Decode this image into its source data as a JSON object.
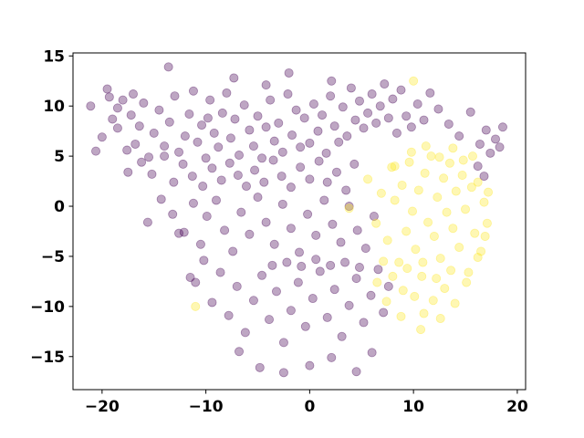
{
  "chart_data": {
    "type": "scatter",
    "title": "",
    "xlabel": "",
    "ylabel": "",
    "xlim": [
      -22.8,
      20.8
    ],
    "ylim": [
      -18.3,
      15.3
    ],
    "x_ticks": [
      -20,
      -10,
      0,
      10,
      20
    ],
    "y_ticks": [
      -15,
      -10,
      -5,
      0,
      5,
      10,
      15
    ],
    "x_tick_labels": [
      "−20",
      "−10",
      "0",
      "10",
      "20"
    ],
    "y_tick_labels": [
      "−15",
      "−10",
      "−5",
      "0",
      "5",
      "10",
      "15"
    ],
    "grid": false,
    "legend": "none",
    "marker_alpha": 0.35,
    "series": [
      {
        "color": "#440154",
        "points": [
          [
            -21.1,
            10.0
          ],
          [
            -20.6,
            5.5
          ],
          [
            -20.0,
            6.9
          ],
          [
            -19.5,
            11.7
          ],
          [
            -19.3,
            10.9
          ],
          [
            -19.0,
            8.7
          ],
          [
            -18.5,
            7.8
          ],
          [
            -18.0,
            10.6
          ],
          [
            -17.6,
            5.6
          ],
          [
            -17.2,
            9.1
          ],
          [
            -16.8,
            6.2
          ],
          [
            -16.4,
            8.0
          ],
          [
            -16.0,
            10.3
          ],
          [
            -15.5,
            4.9
          ],
          [
            -15.0,
            7.3
          ],
          [
            -14.5,
            9.6
          ],
          [
            -14.0,
            6.0
          ],
          [
            -13.5,
            8.4
          ],
          [
            -13.0,
            11.0
          ],
          [
            -12.6,
            5.4
          ],
          [
            -12.0,
            7.0
          ],
          [
            -11.6,
            9.2
          ],
          [
            -11.2,
            11.5
          ],
          [
            -10.8,
            6.4
          ],
          [
            -10.4,
            8.1
          ],
          [
            -10.0,
            4.8
          ],
          [
            -9.6,
            10.6
          ],
          [
            -9.2,
            7.3
          ],
          [
            -8.8,
            5.9
          ],
          [
            -8.4,
            9.3
          ],
          [
            -8.0,
            11.3
          ],
          [
            -7.6,
            6.8
          ],
          [
            -7.2,
            8.7
          ],
          [
            -6.8,
            5.1
          ],
          [
            -6.3,
            10.1
          ],
          [
            -5.8,
            7.6
          ],
          [
            -5.4,
            6.0
          ],
          [
            -5.0,
            9.0
          ],
          [
            -4.6,
            4.8
          ],
          [
            -4.2,
            7.9
          ],
          [
            -3.8,
            10.6
          ],
          [
            -3.4,
            6.5
          ],
          [
            -3.0,
            8.3
          ],
          [
            -2.6,
            5.4
          ],
          [
            -2.1,
            11.2
          ],
          [
            -1.7,
            7.1
          ],
          [
            -1.3,
            9.6
          ],
          [
            -0.9,
            5.9
          ],
          [
            -0.5,
            8.8
          ],
          [
            0.0,
            6.3
          ],
          [
            0.4,
            10.2
          ],
          [
            0.8,
            7.5
          ],
          [
            1.2,
            9.1
          ],
          [
            1.6,
            5.3
          ],
          [
            2.0,
            11.0
          ],
          [
            2.4,
            8.0
          ],
          [
            2.8,
            6.4
          ],
          [
            3.2,
            9.9
          ],
          [
            3.6,
            7.0
          ],
          [
            4.0,
            11.8
          ],
          [
            4.4,
            8.6
          ],
          [
            4.8,
            10.5
          ],
          [
            5.2,
            7.8
          ],
          [
            5.6,
            9.3
          ],
          [
            6.0,
            11.2
          ],
          [
            6.4,
            8.3
          ],
          [
            6.8,
            10.0
          ],
          [
            7.2,
            12.2
          ],
          [
            7.6,
            8.8
          ],
          [
            8.0,
            10.7
          ],
          [
            8.4,
            7.3
          ],
          [
            8.8,
            11.6
          ],
          [
            9.3,
            9.0
          ],
          [
            9.8,
            7.9
          ],
          [
            10.4,
            10.2
          ],
          [
            11.0,
            8.6
          ],
          [
            11.6,
            11.3
          ],
          [
            12.4,
            9.7
          ],
          [
            13.4,
            8.2
          ],
          [
            14.4,
            7.0
          ],
          [
            15.5,
            9.4
          ],
          [
            16.4,
            6.2
          ],
          [
            17.0,
            7.6
          ],
          [
            17.4,
            5.3
          ],
          [
            17.9,
            6.7
          ],
          [
            18.3,
            5.9
          ],
          [
            18.6,
            7.9
          ],
          [
            16.2,
            4.0
          ],
          [
            16.8,
            3.0
          ],
          [
            -17.5,
            3.4
          ],
          [
            -16.2,
            4.4
          ],
          [
            -15.2,
            3.2
          ],
          [
            -14.0,
            5.0
          ],
          [
            -13.1,
            2.4
          ],
          [
            -12.2,
            4.2
          ],
          [
            -11.3,
            3.0
          ],
          [
            -10.3,
            2.0
          ],
          [
            -9.4,
            3.8
          ],
          [
            -8.5,
            2.6
          ],
          [
            -7.7,
            4.3
          ],
          [
            -6.9,
            3.1
          ],
          [
            -6.1,
            2.0
          ],
          [
            -5.3,
            3.6
          ],
          [
            -4.4,
            2.4
          ],
          [
            -3.5,
            4.6
          ],
          [
            -2.7,
            3.0
          ],
          [
            -1.8,
            1.9
          ],
          [
            -0.9,
            3.9
          ],
          [
            0.0,
            2.7
          ],
          [
            0.9,
            4.5
          ],
          [
            1.7,
            2.4
          ],
          [
            2.6,
            3.4
          ],
          [
            3.5,
            1.6
          ],
          [
            4.3,
            4.2
          ],
          [
            -15.6,
            -1.6
          ],
          [
            -14.3,
            0.7
          ],
          [
            -13.2,
            -0.8
          ],
          [
            -12.1,
            -2.6
          ],
          [
            -11.2,
            0.3
          ],
          [
            -10.5,
            -3.8
          ],
          [
            -9.9,
            -1.0
          ],
          [
            -9.0,
            0.6
          ],
          [
            -8.2,
            -2.4
          ],
          [
            -7.4,
            -4.5
          ],
          [
            -6.6,
            -0.6
          ],
          [
            -5.8,
            -2.8
          ],
          [
            -5.0,
            0.9
          ],
          [
            -4.2,
            -1.6
          ],
          [
            -3.4,
            -3.8
          ],
          [
            -2.6,
            0.2
          ],
          [
            -1.8,
            -2.2
          ],
          [
            -1.0,
            -4.6
          ],
          [
            -0.2,
            -0.8
          ],
          [
            0.6,
            -2.9
          ],
          [
            1.4,
            0.6
          ],
          [
            2.2,
            -1.8
          ],
          [
            3.0,
            -3.6
          ],
          [
            3.8,
            0.0
          ],
          [
            4.6,
            -2.4
          ],
          [
            5.4,
            -4.2
          ],
          [
            6.2,
            -1.0
          ],
          [
            -12.6,
            -2.7
          ],
          [
            -11.5,
            -7.1
          ],
          [
            -11.0,
            -7.6
          ],
          [
            -10.2,
            -5.4
          ],
          [
            -9.4,
            -9.6
          ],
          [
            -8.6,
            -6.6
          ],
          [
            -7.8,
            -10.9
          ],
          [
            -7.0,
            -8.0
          ],
          [
            -6.2,
            -12.6
          ],
          [
            -5.4,
            -9.4
          ],
          [
            -4.6,
            -6.9
          ],
          [
            -3.9,
            -11.3
          ],
          [
            -3.2,
            -8.5
          ],
          [
            -2.5,
            -13.6
          ],
          [
            -1.8,
            -10.4
          ],
          [
            -1.1,
            -7.6
          ],
          [
            -0.4,
            -12.0
          ],
          [
            0.3,
            -9.2
          ],
          [
            1.0,
            -6.5
          ],
          [
            1.7,
            -11.1
          ],
          [
            2.4,
            -8.3
          ],
          [
            3.1,
            -13.0
          ],
          [
            3.8,
            -9.9
          ],
          [
            4.5,
            -7.2
          ],
          [
            5.2,
            -11.6
          ],
          [
            5.9,
            -8.9
          ],
          [
            6.6,
            -6.3
          ],
          [
            7.1,
            -10.6
          ],
          [
            7.6,
            -8.0
          ],
          [
            -6.8,
            -14.5
          ],
          [
            -4.8,
            -16.1
          ],
          [
            -2.5,
            -16.6
          ],
          [
            0.0,
            -15.9
          ],
          [
            2.1,
            -15.1
          ],
          [
            4.5,
            -16.5
          ],
          [
            6.0,
            -14.6
          ],
          [
            -2.0,
            13.3
          ],
          [
            -13.6,
            13.9
          ],
          [
            -3.6,
            -5.9
          ],
          [
            -2.2,
            -5.6
          ],
          [
            -0.8,
            -6.0
          ],
          [
            0.6,
            -5.3
          ],
          [
            2.0,
            -5.9
          ],
          [
            3.4,
            -5.6
          ],
          [
            4.8,
            -6.1
          ],
          [
            -9.8,
            8.8
          ],
          [
            -4.2,
            12.1
          ],
          [
            -7.3,
            12.8
          ],
          [
            2.1,
            12.5
          ],
          [
            -18.5,
            9.8
          ],
          [
            -17.0,
            11.2
          ]
        ]
      },
      {
        "color": "#fde725",
        "points": [
          [
            3.8,
            -0.2
          ],
          [
            5.6,
            2.7
          ],
          [
            6.4,
            -1.7
          ],
          [
            6.9,
            1.3
          ],
          [
            7.5,
            -3.4
          ],
          [
            7.9,
            3.9
          ],
          [
            8.2,
            0.6
          ],
          [
            8.6,
            -5.6
          ],
          [
            8.9,
            2.1
          ],
          [
            9.3,
            -2.5
          ],
          [
            9.6,
            4.4
          ],
          [
            9.9,
            -0.5
          ],
          [
            10.2,
            -4.3
          ],
          [
            10.5,
            1.6
          ],
          [
            10.8,
            -7.0
          ],
          [
            11.1,
            3.3
          ],
          [
            11.4,
            -1.6
          ],
          [
            11.7,
            5.0
          ],
          [
            12.0,
            -3.0
          ],
          [
            12.3,
            0.9
          ],
          [
            12.6,
            -5.2
          ],
          [
            12.9,
            2.8
          ],
          [
            13.2,
            -0.6
          ],
          [
            13.5,
            4.3
          ],
          [
            13.8,
            -2.2
          ],
          [
            14.1,
            1.5
          ],
          [
            14.4,
            -4.1
          ],
          [
            14.7,
            3.1
          ],
          [
            15.0,
            -0.3
          ],
          [
            15.3,
            -6.6
          ],
          [
            15.6,
            1.9
          ],
          [
            15.9,
            -2.7
          ],
          [
            16.2,
            2.4
          ],
          [
            16.5,
            -4.5
          ],
          [
            16.8,
            0.4
          ],
          [
            17.1,
            -1.7
          ],
          [
            9.0,
            -8.4
          ],
          [
            10.1,
            -9.0
          ],
          [
            11.0,
            -10.7
          ],
          [
            11.9,
            -9.4
          ],
          [
            13.0,
            -8.2
          ],
          [
            14.0,
            -9.7
          ],
          [
            12.6,
            -11.2
          ],
          [
            10.7,
            -12.3
          ],
          [
            8.8,
            -11.0
          ],
          [
            7.4,
            -9.5
          ],
          [
            6.5,
            -7.6
          ],
          [
            -11.0,
            -10.0
          ],
          [
            10.0,
            12.5
          ],
          [
            8.2,
            4.0
          ],
          [
            9.8,
            5.4
          ],
          [
            11.2,
            6.0
          ],
          [
            12.5,
            4.9
          ],
          [
            13.8,
            5.8
          ],
          [
            14.8,
            4.6
          ],
          [
            15.7,
            5.0
          ],
          [
            7.1,
            -5.5
          ],
          [
            8.0,
            -7.0
          ],
          [
            9.4,
            -6.2
          ],
          [
            10.9,
            -5.6
          ],
          [
            12.2,
            -7.2
          ],
          [
            13.6,
            -6.4
          ],
          [
            15.1,
            -7.6
          ],
          [
            16.2,
            -5.1
          ],
          [
            16.9,
            -3.0
          ],
          [
            17.2,
            1.4
          ]
        ]
      }
    ]
  }
}
